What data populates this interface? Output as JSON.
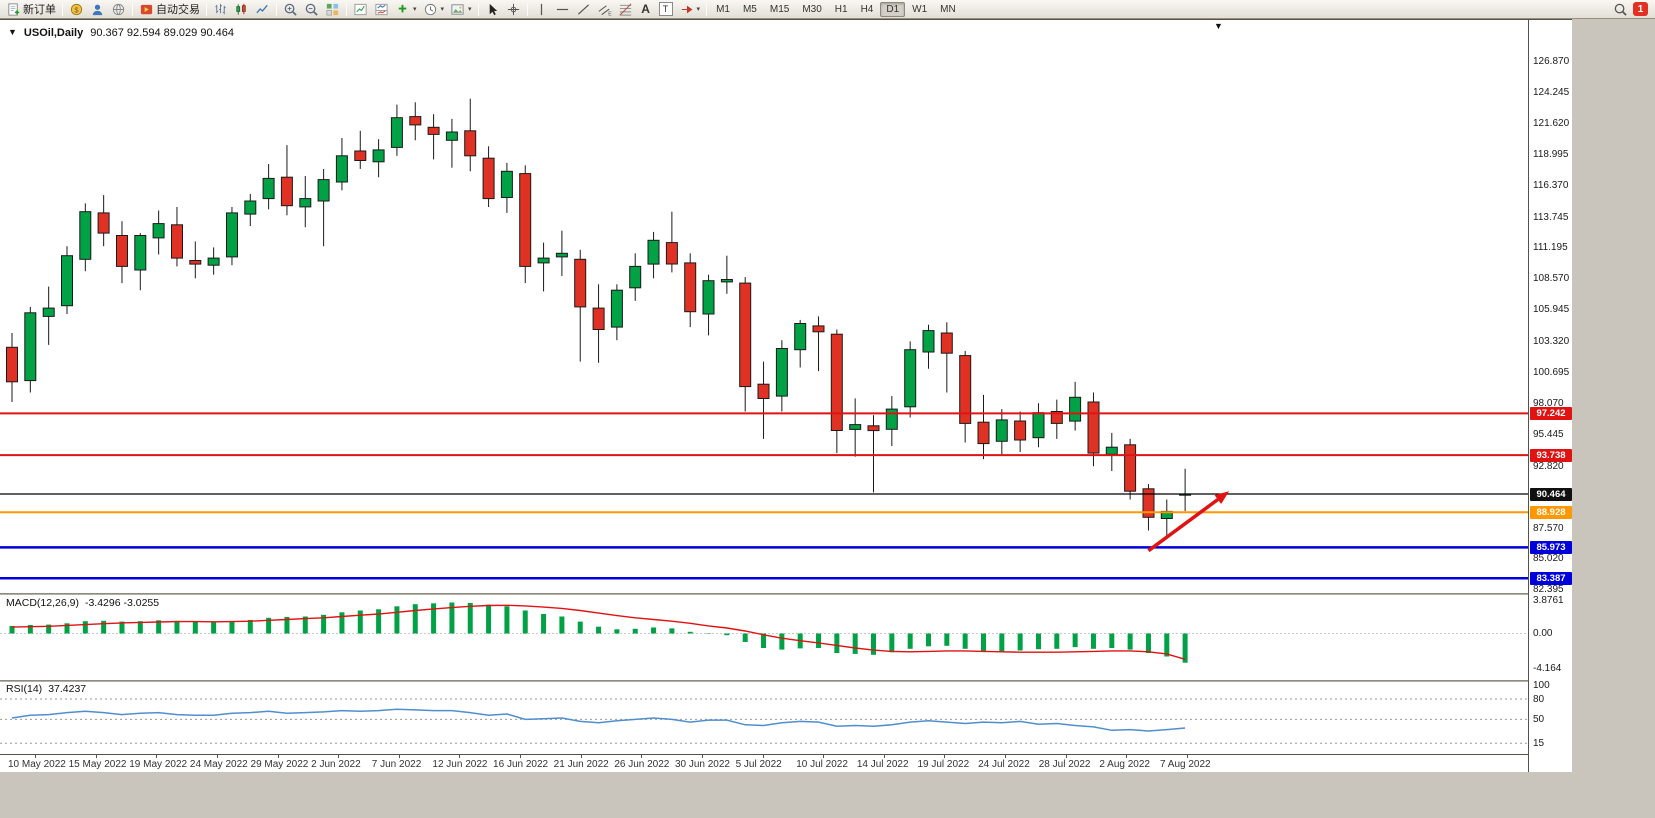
{
  "icons": {
    "dropdown_small": "▾",
    "shift_marker": "▼"
  },
  "toolbar": {
    "new_order": "新订单",
    "auto_trade": "自动交易",
    "text_tool": "A",
    "textbox_tool": "T",
    "timeframes": [
      "M1",
      "M5",
      "M15",
      "M30",
      "H1",
      "H4",
      "D1",
      "W1",
      "MN"
    ],
    "active_timeframe": "D1",
    "badge_count": "1"
  },
  "chart": {
    "dropdown_glyph": "▼",
    "symbol_title": "USOil,Daily",
    "ohlc_text": "90.367 92.594 89.029 90.464"
  },
  "price_axis": {
    "ticks": [
      {
        "label": "126.870",
        "value": 126.87
      },
      {
        "label": "124.245",
        "value": 124.245
      },
      {
        "label": "121.620",
        "value": 121.62
      },
      {
        "label": "118.995",
        "value": 118.995
      },
      {
        "label": "116.370",
        "value": 116.37
      },
      {
        "label": "113.745",
        "value": 113.745
      },
      {
        "label": "111.195",
        "value": 111.195
      },
      {
        "label": "108.570",
        "value": 108.57
      },
      {
        "label": "105.945",
        "value": 105.945
      },
      {
        "label": "103.320",
        "value": 103.32
      },
      {
        "label": "100.695",
        "value": 100.695
      },
      {
        "label": "98.070",
        "value": 98.07
      },
      {
        "label": "95.445",
        "value": 95.445
      },
      {
        "label": "92.820",
        "value": 92.82
      },
      {
        "label": "87.570",
        "value": 87.57
      },
      {
        "label": "85.020",
        "value": 85.02
      },
      {
        "label": "82.395",
        "value": 82.395
      }
    ],
    "tags": [
      {
        "label": "97.242",
        "value": 97.242,
        "color": "#e01212"
      },
      {
        "label": "93.738",
        "value": 93.738,
        "color": "#e01212"
      },
      {
        "label": "90.464",
        "value": 90.464,
        "color": "#101010"
      },
      {
        "label": "88.928",
        "value": 88.928,
        "color": "#ff9800"
      },
      {
        "label": "85.973",
        "value": 85.973,
        "color": "#0000dd"
      },
      {
        "label": "83.387",
        "value": 83.387,
        "color": "#0000dd"
      }
    ]
  },
  "hlines": [
    {
      "value": 97.242,
      "color": "#e01212",
      "w": 2
    },
    {
      "value": 93.738,
      "color": "#e01212",
      "w": 2
    },
    {
      "value": 90.464,
      "color": "#000000",
      "w": 1.2
    },
    {
      "value": 88.928,
      "color": "#ff9800",
      "w": 2
    },
    {
      "value": 85.973,
      "color": "#0000dd",
      "w": 2.5
    },
    {
      "value": 83.387,
      "color": "#0000dd",
      "w": 2.5
    }
  ],
  "annotation_arrow": {
    "x1_bar": 62.0,
    "y1_price": 85.7,
    "x2_bar": 66.4,
    "y2_price": 90.7,
    "color": "#e01212"
  },
  "chart_data": {
    "type": "candlestick",
    "symbol": "USOil",
    "timeframe": "Daily",
    "up_color": "#00a245",
    "down_color": "#e03224",
    "wick_color": "#1a1a1a",
    "ylim": [
      82.14,
      130.15
    ],
    "candles": [
      [
        "2022-05-10",
        102.8,
        104.0,
        98.2,
        99.9
      ],
      [
        "2022-05-11",
        100.0,
        106.2,
        99.0,
        105.7
      ],
      [
        "2022-05-12",
        105.4,
        107.9,
        103.0,
        106.1
      ],
      [
        "2022-05-13",
        106.3,
        111.3,
        105.6,
        110.5
      ],
      [
        "2022-05-16",
        110.2,
        114.9,
        109.2,
        114.2
      ],
      [
        "2022-05-17",
        114.1,
        115.6,
        111.3,
        112.4
      ],
      [
        "2022-05-18",
        112.2,
        113.4,
        108.2,
        109.6
      ],
      [
        "2022-05-19",
        109.3,
        112.4,
        107.6,
        112.2
      ],
      [
        "2022-05-20",
        112.0,
        114.3,
        110.6,
        113.2
      ],
      [
        "2022-05-23",
        113.1,
        114.6,
        109.6,
        110.3
      ],
      [
        "2022-05-24",
        110.1,
        111.7,
        108.6,
        109.8
      ],
      [
        "2022-05-25",
        109.7,
        111.2,
        108.9,
        110.3
      ],
      [
        "2022-05-26",
        110.4,
        114.6,
        109.7,
        114.1
      ],
      [
        "2022-05-27",
        114.0,
        115.7,
        113.0,
        115.1
      ],
      [
        "2022-05-30",
        115.3,
        118.2,
        114.4,
        117.0
      ],
      [
        "2022-05-31",
        117.1,
        119.8,
        113.9,
        114.7
      ],
      [
        "2022-06-01",
        114.6,
        117.2,
        112.9,
        115.3
      ],
      [
        "2022-06-02",
        115.1,
        117.8,
        111.3,
        116.9
      ],
      [
        "2022-06-03",
        116.7,
        120.4,
        116.0,
        118.9
      ],
      [
        "2022-06-06",
        119.3,
        121.0,
        117.8,
        118.5
      ],
      [
        "2022-06-07",
        118.4,
        120.3,
        117.1,
        119.4
      ],
      [
        "2022-06-08",
        119.6,
        123.2,
        118.9,
        122.1
      ],
      [
        "2022-06-09",
        122.2,
        123.4,
        120.2,
        121.5
      ],
      [
        "2022-06-10",
        121.3,
        122.4,
        118.6,
        120.7
      ],
      [
        "2022-06-13",
        120.2,
        122.0,
        117.9,
        120.9
      ],
      [
        "2022-06-14",
        121.0,
        123.7,
        117.6,
        118.9
      ],
      [
        "2022-06-15",
        118.7,
        119.7,
        114.6,
        115.3
      ],
      [
        "2022-06-16",
        115.4,
        118.3,
        114.1,
        117.6
      ],
      [
        "2022-06-17",
        117.4,
        118.1,
        108.2,
        109.6
      ],
      [
        "2022-06-20",
        109.9,
        111.6,
        107.5,
        110.3
      ],
      [
        "2022-06-21",
        110.4,
        112.6,
        108.8,
        110.7
      ],
      [
        "2022-06-22",
        110.2,
        111.0,
        101.6,
        106.2
      ],
      [
        "2022-06-23",
        106.1,
        108.1,
        101.5,
        104.3
      ],
      [
        "2022-06-24",
        104.5,
        108.1,
        103.4,
        107.6
      ],
      [
        "2022-06-27",
        107.8,
        110.7,
        106.7,
        109.6
      ],
      [
        "2022-06-28",
        109.8,
        112.5,
        108.6,
        111.8
      ],
      [
        "2022-06-29",
        111.6,
        114.2,
        109.1,
        109.8
      ],
      [
        "2022-06-30",
        109.9,
        110.7,
        104.5,
        105.8
      ],
      [
        "2022-07-01",
        105.6,
        108.9,
        103.8,
        108.4
      ],
      [
        "2022-07-04",
        108.3,
        110.5,
        107.3,
        108.5
      ],
      [
        "2022-07-05",
        108.2,
        108.7,
        97.4,
        99.5
      ],
      [
        "2022-07-06",
        99.7,
        101.6,
        95.1,
        98.5
      ],
      [
        "2022-07-07",
        98.7,
        103.4,
        97.4,
        102.7
      ],
      [
        "2022-07-08",
        102.6,
        105.1,
        101.1,
        104.8
      ],
      [
        "2022-07-11",
        104.6,
        105.4,
        100.8,
        104.1
      ],
      [
        "2022-07-12",
        103.9,
        104.3,
        93.9,
        95.8
      ],
      [
        "2022-07-13",
        95.9,
        98.5,
        93.6,
        96.3
      ],
      [
        "2022-07-14",
        96.2,
        97.1,
        90.6,
        95.8
      ],
      [
        "2022-07-15",
        95.9,
        98.7,
        94.5,
        97.6
      ],
      [
        "2022-07-18",
        97.8,
        103.3,
        96.9,
        102.6
      ],
      [
        "2022-07-19",
        102.4,
        104.7,
        101.0,
        104.2
      ],
      [
        "2022-07-20",
        104.0,
        104.9,
        99.0,
        102.3
      ],
      [
        "2022-07-21",
        102.1,
        102.5,
        94.8,
        96.4
      ],
      [
        "2022-07-22",
        96.5,
        98.8,
        93.4,
        94.7
      ],
      [
        "2022-07-25",
        94.9,
        97.6,
        93.8,
        96.7
      ],
      [
        "2022-07-26",
        96.6,
        97.4,
        94.0,
        95.0
      ],
      [
        "2022-07-27",
        95.2,
        98.1,
        94.4,
        97.3
      ],
      [
        "2022-07-28",
        97.4,
        98.4,
        95.1,
        96.4
      ],
      [
        "2022-07-29",
        96.6,
        99.9,
        95.8,
        98.6
      ],
      [
        "2022-08-01",
        98.2,
        99.0,
        92.8,
        93.9
      ],
      [
        "2022-08-02",
        93.8,
        95.6,
        92.4,
        94.4
      ],
      [
        "2022-08-03",
        94.6,
        95.1,
        90.0,
        90.7
      ],
      [
        "2022-08-04",
        90.9,
        91.3,
        87.4,
        88.5
      ],
      [
        "2022-08-05",
        88.4,
        90.0,
        86.9,
        89.0
      ],
      [
        "2022-08-08",
        90.367,
        92.594,
        89.029,
        90.464
      ]
    ]
  },
  "macd": {
    "label": "MACD(12,26,9)",
    "values_text": "-3.4296 -3.0255",
    "hist_color": "#00a245",
    "signal_color": "#e01212",
    "axis_ticks": [
      {
        "label": "3.8761",
        "value": 3.8761
      },
      {
        "label": "0.00",
        "value": 0
      },
      {
        "label": "-4.164",
        "value": -4.164
      }
    ],
    "histogram": [
      0.9,
      1.0,
      1.05,
      1.2,
      1.45,
      1.5,
      1.4,
      1.45,
      1.55,
      1.5,
      1.35,
      1.3,
      1.45,
      1.6,
      1.85,
      1.95,
      2.0,
      2.2,
      2.5,
      2.7,
      2.85,
      3.2,
      3.45,
      3.55,
      3.65,
      3.6,
      3.4,
      3.2,
      2.7,
      2.3,
      2.0,
      1.4,
      0.8,
      0.5,
      0.55,
      0.7,
      0.6,
      0.2,
      -0.05,
      -0.2,
      -1.0,
      -1.7,
      -1.9,
      -1.75,
      -1.7,
      -2.3,
      -2.4,
      -2.5,
      -2.2,
      -1.8,
      -1.5,
      -1.45,
      -1.8,
      -2.1,
      -2.1,
      -2.0,
      -1.85,
      -1.8,
      -1.6,
      -1.8,
      -1.7,
      -1.9,
      -2.3,
      -2.7,
      -3.43
    ],
    "signal": [
      0.75,
      0.8,
      0.85,
      0.95,
      1.05,
      1.15,
      1.25,
      1.3,
      1.35,
      1.4,
      1.4,
      1.38,
      1.4,
      1.45,
      1.55,
      1.65,
      1.75,
      1.85,
      2.0,
      2.15,
      2.3,
      2.5,
      2.7,
      2.9,
      3.05,
      3.2,
      3.3,
      3.32,
      3.25,
      3.1,
      2.95,
      2.7,
      2.4,
      2.1,
      1.85,
      1.65,
      1.45,
      1.2,
      0.9,
      0.65,
      0.3,
      -0.15,
      -0.55,
      -0.85,
      -1.1,
      -1.4,
      -1.7,
      -1.95,
      -2.1,
      -2.15,
      -2.1,
      -2.05,
      -2.05,
      -2.1,
      -2.15,
      -2.2,
      -2.2,
      -2.2,
      -2.15,
      -2.1,
      -2.05,
      -2.05,
      -2.15,
      -2.4,
      -3.03
    ]
  },
  "rsi": {
    "label": "RSI(14)",
    "value_text": "37.4237",
    "line_color": "#4f8fd0",
    "axis_ticks": [
      {
        "label": "100",
        "value": 100
      },
      {
        "label": "80",
        "value": 80
      },
      {
        "label": "50",
        "value": 50
      },
      {
        "label": "15",
        "value": 15
      }
    ],
    "levels": [
      80,
      50,
      15
    ],
    "values": [
      52,
      56,
      57,
      60,
      62,
      60,
      57,
      59,
      60,
      57,
      56,
      56,
      59,
      60,
      62,
      59,
      60,
      61,
      63,
      62,
      63,
      65,
      64,
      63,
      63,
      60,
      56,
      58,
      50,
      51,
      52,
      47,
      45,
      48,
      50,
      52,
      50,
      46,
      49,
      49,
      42,
      41,
      45,
      47,
      46,
      40,
      41,
      40,
      42,
      46,
      48,
      46,
      44,
      46,
      45,
      47,
      43,
      44,
      41,
      39,
      34,
      35,
      33,
      35,
      37.42
    ]
  },
  "date_axis": {
    "labels": [
      "10 May 2022",
      "15 May 2022",
      "19 May 2022",
      "24 May 2022",
      "29 May 2022",
      "2 Jun 2022",
      "7 Jun 2022",
      "12 Jun 2022",
      "16 Jun 2022",
      "21 Jun 2022",
      "26 Jun 2022",
      "30 Jun 2022",
      "5 Jul 2022",
      "10 Jul 2022",
      "14 Jul 2022",
      "19 Jul 2022",
      "24 Jul 2022",
      "28 Jul 2022",
      "2 Aug 2022",
      "7 Aug 2022"
    ]
  }
}
